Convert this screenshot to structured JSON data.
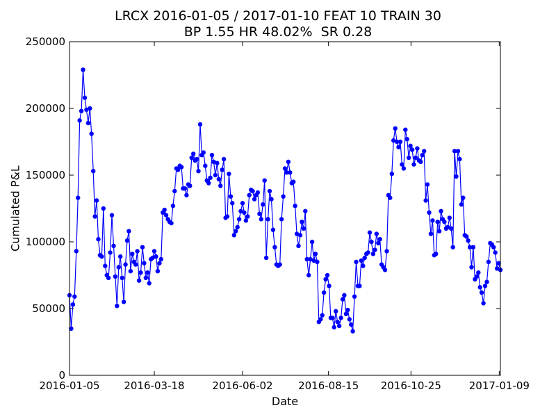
{
  "chart_data": {
    "type": "line",
    "title": "LRCX 2016-01-05 / 2017-01-10 FEAT 10 TRAIN 30",
    "subtitle": "BP 1.55 HR 48.02%  SR 0.28",
    "xlabel": "Date",
    "ylabel": "Cumulated P&L",
    "x_start": "2016-01-05",
    "x_end": "2017-01-10",
    "x_ticks": [
      "2016-01-05",
      "2016-03-18",
      "2016-06-02",
      "2016-08-15",
      "2016-10-25",
      "2017-01-09"
    ],
    "ylim": [
      0,
      250000
    ],
    "y_ticks": [
      0,
      50000,
      100000,
      150000,
      200000,
      250000
    ],
    "grid": false,
    "series": [
      {
        "color": "#0000ff",
        "marker": "circle",
        "values": [
          60000,
          35000,
          53000,
          59000,
          93000,
          133000,
          191000,
          198000,
          229000,
          208000,
          199000,
          189000,
          200000,
          181000,
          153000,
          119000,
          131000,
          102000,
          90000,
          89000,
          125000,
          82000,
          75000,
          73000,
          92000,
          120000,
          97000,
          74000,
          52000,
          81000,
          89000,
          73000,
          55000,
          83000,
          101000,
          108000,
          78000,
          91000,
          85000,
          83000,
          93000,
          71000,
          77000,
          96000,
          84000,
          73000,
          77000,
          69000,
          87000,
          88000,
          93000,
          89000,
          78000,
          84000,
          87000,
          122000,
          124000,
          120000,
          117000,
          115000,
          114000,
          127000,
          138000,
          155000,
          154000,
          157000,
          156000,
          140000,
          140000,
          135000,
          143000,
          142000,
          163000,
          166000,
          161000,
          162000,
          153000,
          188000,
          165000,
          167000,
          157000,
          146000,
          144000,
          148000,
          165000,
          160000,
          150000,
          159000,
          147000,
          142000,
          154000,
          162000,
          118000,
          119000,
          151000,
          134000,
          129000,
          105000,
          108000,
          111000,
          117000,
          123000,
          129000,
          122000,
          116000,
          119000,
          135000,
          139000,
          138000,
          132000,
          135000,
          137000,
          121000,
          117000,
          128000,
          146000,
          88000,
          117000,
          138000,
          132000,
          109000,
          96000,
          83000,
          82000,
          83000,
          117000,
          134000,
          155000,
          152000,
          160000,
          152000,
          144000,
          145000,
          127000,
          106000,
          97000,
          105000,
          115000,
          110000,
          123000,
          87000,
          75000,
          87000,
          100000,
          86000,
          91000,
          85000,
          40000,
          42000,
          45000,
          62000,
          72000,
          75000,
          67000,
          43000,
          43000,
          36000,
          48000,
          40000,
          37000,
          43000,
          57000,
          60000,
          46000,
          49000,
          42000,
          38000,
          33000,
          59000,
          85000,
          67000,
          67000,
          86000,
          82000,
          88000,
          91000,
          92000,
          107000,
          100000,
          91000,
          94000,
          106000,
          99000,
          102000,
          83000,
          81000,
          79000,
          93000,
          135000,
          133000,
          151000,
          176000,
          185000,
          175000,
          171000,
          175000,
          158000,
          155000,
          184000,
          177000,
          163000,
          172000,
          169000,
          158000,
          163000,
          170000,
          161000,
          160000,
          165000,
          168000,
          131000,
          143000,
          122000,
          106000,
          116000,
          90000,
          91000,
          115000,
          108000,
          123000,
          117000,
          115000,
          110000,
          111000,
          118000,
          110000,
          96000,
          168000,
          149000,
          168000,
          162000,
          128000,
          133000,
          105000,
          104000,
          101000,
          96000,
          81000,
          96000,
          72000,
          74000,
          77000,
          66000,
          62000,
          54000,
          67000,
          70000,
          85000,
          99000,
          98000,
          96000,
          92000,
          80000,
          84000,
          79000
        ]
      }
    ]
  }
}
